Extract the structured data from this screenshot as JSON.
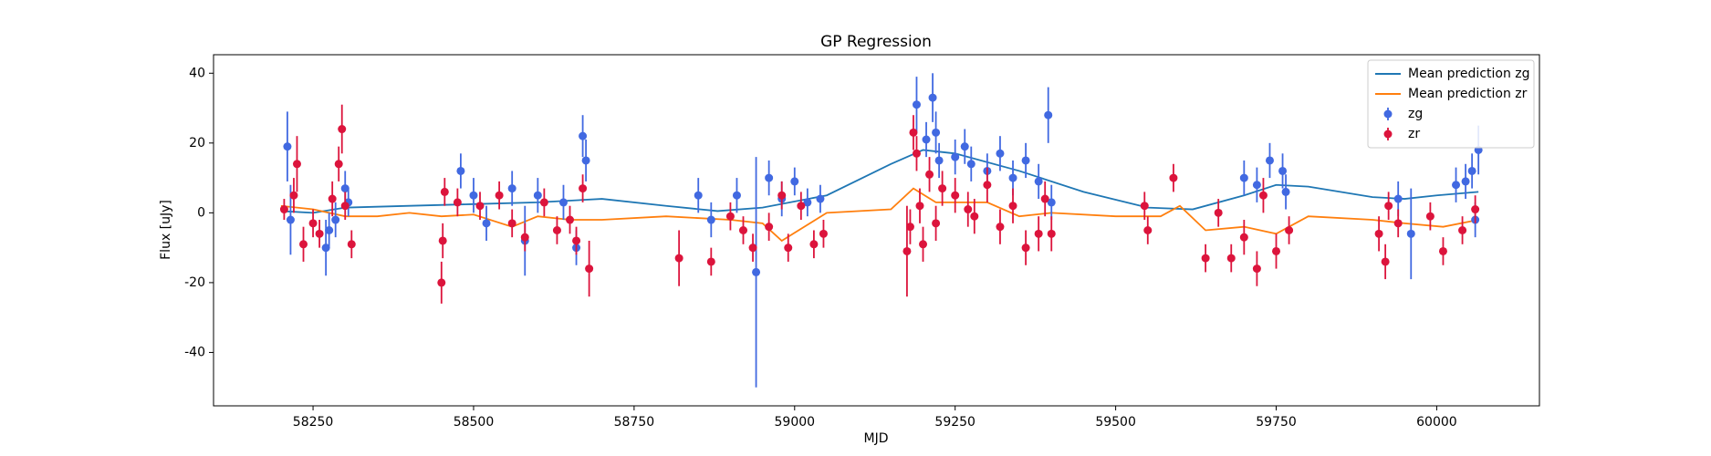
{
  "chart_data": {
    "type": "scatter",
    "title": "GP Regression",
    "x_label": "MJD",
    "y_label": "Flux [uJy]",
    "xlim": [
      58095,
      60160
    ],
    "ylim": [
      -55.3,
      45.3
    ],
    "xticks": [
      58250,
      58500,
      58750,
      59000,
      59250,
      59500,
      59750,
      60000
    ],
    "yticks": [
      -40,
      -20,
      0,
      20,
      40
    ],
    "legend": "upper right",
    "series": [
      {
        "name": "Mean prediction zg",
        "kind": "line",
        "color": "#1f77b4",
        "x": [
          58200,
          58250,
          58300,
          58400,
          58500,
          58600,
          58700,
          58800,
          58880,
          58950,
          59050,
          59150,
          59200,
          59250,
          59350,
          59450,
          59550,
          59620,
          59700,
          59750,
          59800,
          59900,
          59950,
          60000,
          60065
        ],
        "values": [
          0.5,
          0,
          1.5,
          2,
          2.5,
          3,
          4,
          2,
          0.5,
          1.5,
          5,
          14,
          18,
          17,
          12,
          6,
          1.5,
          1,
          5,
          8,
          7.5,
          4.5,
          4,
          5,
          6
        ]
      },
      {
        "name": "Mean prediction zr",
        "kind": "line",
        "color": "#ff7f0e",
        "x": [
          58200,
          58250,
          58300,
          58350,
          58400,
          58450,
          58500,
          58560,
          58600,
          58650,
          58700,
          58800,
          58900,
          58950,
          58980,
          59050,
          59150,
          59185,
          59220,
          59300,
          59350,
          59400,
          59500,
          59570,
          59600,
          59640,
          59700,
          59750,
          59800,
          59900,
          59950,
          60010,
          60065
        ],
        "values": [
          2,
          1,
          -1,
          -1,
          0,
          -1,
          -0.5,
          -4,
          -1,
          -2,
          -2,
          -1,
          -2,
          -3,
          -8,
          0,
          1,
          7,
          3,
          3,
          -1,
          0,
          -1,
          -1,
          2,
          -5,
          -4,
          -6,
          -1,
          -2,
          -3,
          -4,
          -2
        ]
      },
      {
        "name": "zg",
        "kind": "errorbar",
        "color": "#4169e1",
        "x": [
          58210,
          58215,
          58270,
          58275,
          58285,
          58300,
          58305,
          58480,
          58500,
          58520,
          58560,
          58580,
          58600,
          58640,
          58660,
          58670,
          58675,
          58850,
          58870,
          58910,
          58940,
          58960,
          58980,
          59000,
          59020,
          59040,
          59190,
          59205,
          59215,
          59220,
          59225,
          59250,
          59265,
          59275,
          59300,
          59320,
          59340,
          59360,
          59380,
          59395,
          59400,
          59700,
          59720,
          59740,
          59760,
          59765,
          59940,
          59960,
          60030,
          60045,
          60055,
          60060,
          60065
        ],
        "values": [
          19,
          -2,
          -10,
          -5,
          -2,
          7,
          3,
          12,
          5,
          -3,
          7,
          -8,
          5,
          3,
          -10,
          22,
          15,
          5,
          -2,
          5,
          -17,
          10,
          4,
          9,
          3,
          4,
          31,
          21,
          33,
          23,
          15,
          16,
          19,
          14,
          12,
          17,
          10,
          15,
          9,
          28,
          3,
          10,
          8,
          15,
          12,
          6,
          4,
          -6,
          8,
          9,
          12,
          -2,
          18
        ],
        "errors": [
          10,
          10,
          8,
          5,
          5,
          5,
          4,
          5,
          5,
          5,
          5,
          10,
          5,
          5,
          5,
          6,
          6,
          5,
          5,
          5,
          33,
          5,
          5,
          4,
          4,
          4,
          8,
          5,
          7,
          6,
          5,
          5,
          5,
          5,
          5,
          5,
          5,
          5,
          5,
          8,
          5,
          5,
          5,
          5,
          5,
          5,
          5,
          13,
          5,
          5,
          5,
          5,
          7
        ]
      },
      {
        "name": "zr",
        "kind": "errorbar",
        "color": "#dc143c",
        "x": [
          58205,
          58220,
          58225,
          58235,
          58250,
          58260,
          58280,
          58290,
          58295,
          58300,
          58310,
          58450,
          58452,
          58455,
          58475,
          58510,
          58540,
          58560,
          58580,
          58610,
          58630,
          58650,
          58660,
          58670,
          58680,
          58820,
          58870,
          58900,
          58920,
          58935,
          58960,
          58980,
          58990,
          59010,
          59030,
          59045,
          59175,
          59180,
          59185,
          59190,
          59195,
          59200,
          59210,
          59220,
          59230,
          59250,
          59270,
          59280,
          59300,
          59320,
          59340,
          59360,
          59380,
          59390,
          59400,
          59545,
          59550,
          59590,
          59640,
          59660,
          59680,
          59700,
          59720,
          59730,
          59750,
          59770,
          59910,
          59920,
          59925,
          59940,
          59990,
          60010,
          60040,
          60060
        ],
        "values": [
          1,
          5,
          14,
          -9,
          -3,
          -6,
          4,
          14,
          24,
          2,
          -9,
          -20,
          -8,
          6,
          3,
          2,
          5,
          -3,
          -7,
          3,
          -5,
          -2,
          -8,
          7,
          -16,
          -13,
          -14,
          -1,
          -5,
          -10,
          -4,
          5,
          -10,
          2,
          -9,
          -6,
          -11,
          -4,
          23,
          17,
          2,
          -9,
          11,
          -3,
          7,
          5,
          1,
          -1,
          8,
          -4,
          2,
          -10,
          -6,
          4,
          -6,
          2,
          -5,
          10,
          -13,
          0,
          -13,
          -7,
          -16,
          5,
          -11,
          -5,
          -6,
          -14,
          2,
          -3,
          -1,
          -11,
          -5,
          1
        ],
        "errors": [
          3,
          5,
          8,
          5,
          4,
          4,
          5,
          5,
          7,
          4,
          4,
          6,
          5,
          4,
          4,
          4,
          4,
          4,
          4,
          4,
          4,
          4,
          4,
          4,
          8,
          8,
          4,
          4,
          4,
          4,
          4,
          4,
          4,
          4,
          4,
          4,
          13,
          5,
          5,
          5,
          5,
          5,
          5,
          5,
          5,
          5,
          5,
          5,
          5,
          5,
          5,
          5,
          5,
          5,
          5,
          4,
          4,
          4,
          4,
          4,
          4,
          5,
          5,
          5,
          5,
          4,
          5,
          5,
          4,
          4,
          4,
          4,
          4,
          4
        ]
      }
    ]
  }
}
